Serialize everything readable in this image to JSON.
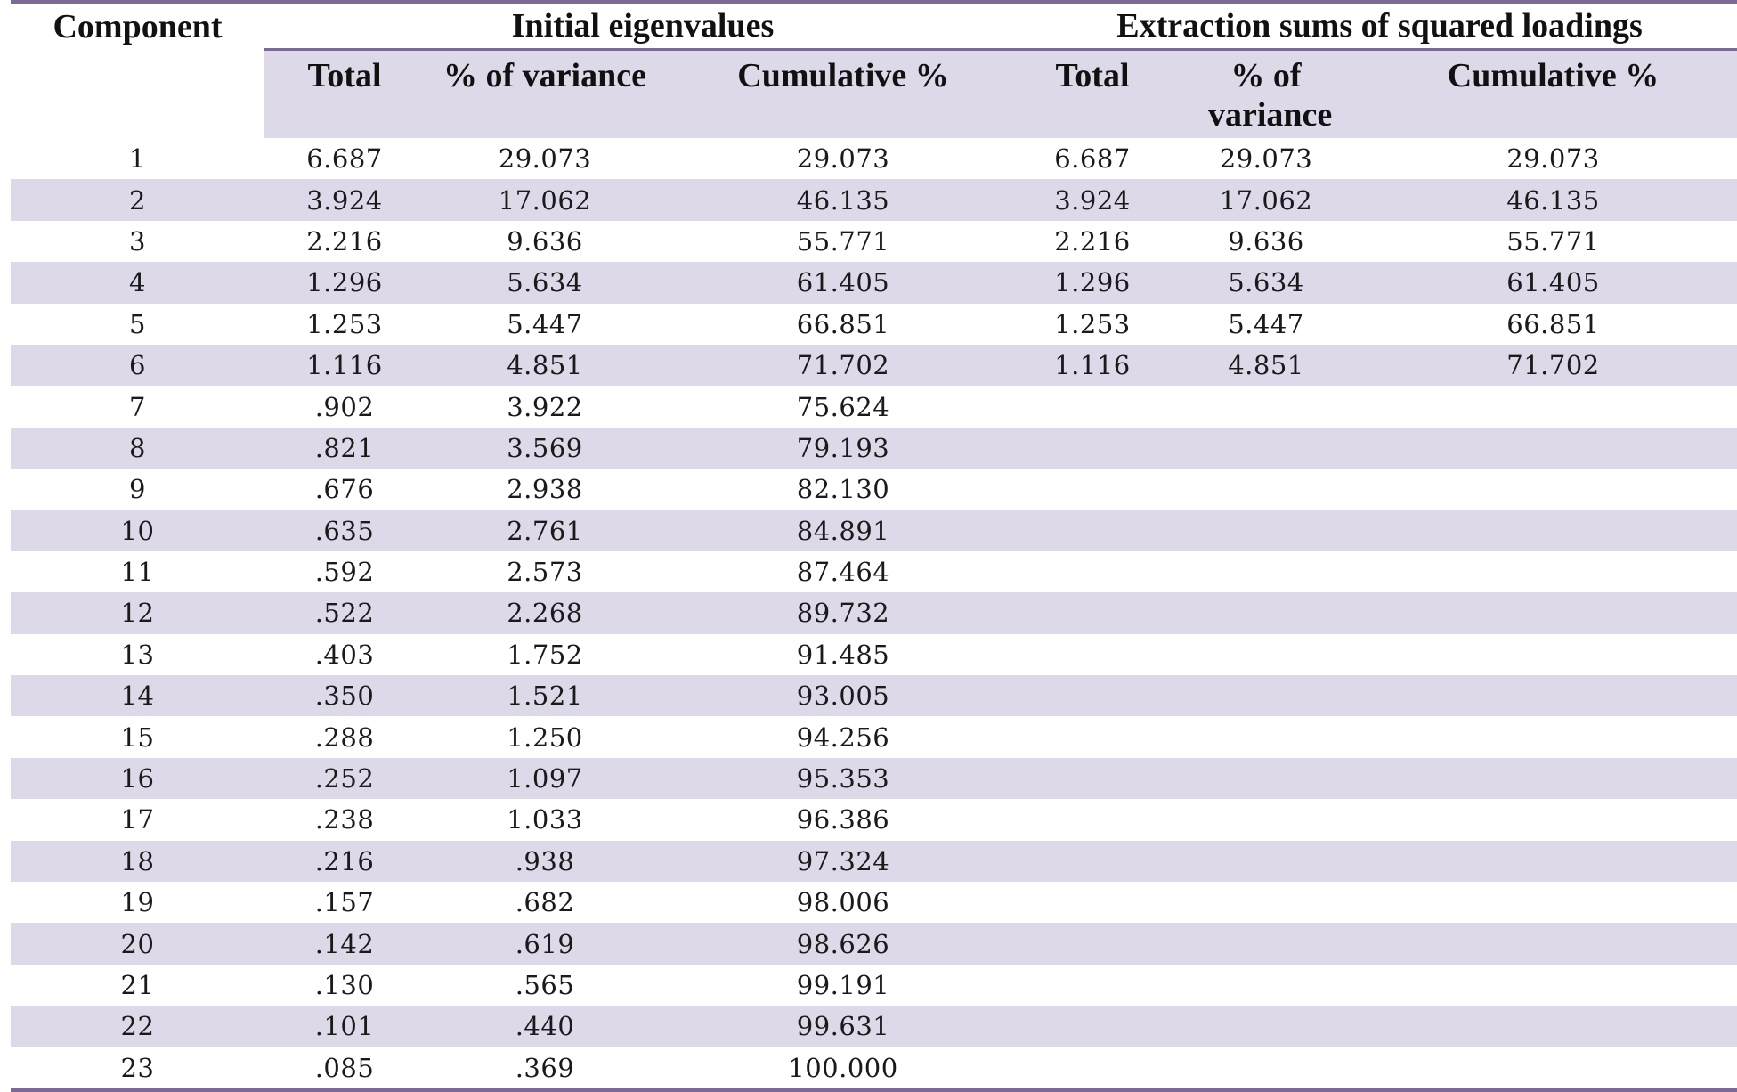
{
  "header": {
    "component": "Component",
    "group_initial": "Initial eigenvalues",
    "group_extraction": "Extraction sums of squared loadings",
    "initial_total": "Total",
    "initial_pct": "% of variance",
    "initial_cum": "Cumulative %",
    "extraction_total": "Total",
    "extraction_pct": "% of variance",
    "extraction_cum": "Cumulative %"
  },
  "rows": [
    {
      "component": "1",
      "total": "6.687",
      "pct": "29.073",
      "cum": "29.073",
      "ext_total": "6.687",
      "ext_pct": "29.073",
      "ext_cum": "29.073"
    },
    {
      "component": "2",
      "total": "3.924",
      "pct": "17.062",
      "cum": "46.135",
      "ext_total": "3.924",
      "ext_pct": "17.062",
      "ext_cum": "46.135"
    },
    {
      "component": "3",
      "total": "2.216",
      "pct": "9.636",
      "cum": "55.771",
      "ext_total": "2.216",
      "ext_pct": "9.636",
      "ext_cum": "55.771"
    },
    {
      "component": "4",
      "total": "1.296",
      "pct": "5.634",
      "cum": "61.405",
      "ext_total": "1.296",
      "ext_pct": "5.634",
      "ext_cum": "61.405"
    },
    {
      "component": "5",
      "total": "1.253",
      "pct": "5.447",
      "cum": "66.851",
      "ext_total": "1.253",
      "ext_pct": "5.447",
      "ext_cum": "66.851"
    },
    {
      "component": "6",
      "total": "1.116",
      "pct": "4.851",
      "cum": "71.702",
      "ext_total": "1.116",
      "ext_pct": "4.851",
      "ext_cum": "71.702"
    },
    {
      "component": "7",
      "total": ".902",
      "pct": "3.922",
      "cum": "75.624",
      "ext_total": "",
      "ext_pct": "",
      "ext_cum": ""
    },
    {
      "component": "8",
      "total": ".821",
      "pct": "3.569",
      "cum": "79.193",
      "ext_total": "",
      "ext_pct": "",
      "ext_cum": ""
    },
    {
      "component": "9",
      "total": ".676",
      "pct": "2.938",
      "cum": "82.130",
      "ext_total": "",
      "ext_pct": "",
      "ext_cum": ""
    },
    {
      "component": "10",
      "total": ".635",
      "pct": "2.761",
      "cum": "84.891",
      "ext_total": "",
      "ext_pct": "",
      "ext_cum": ""
    },
    {
      "component": "11",
      "total": ".592",
      "pct": "2.573",
      "cum": "87.464",
      "ext_total": "",
      "ext_pct": "",
      "ext_cum": ""
    },
    {
      "component": "12",
      "total": ".522",
      "pct": "2.268",
      "cum": "89.732",
      "ext_total": "",
      "ext_pct": "",
      "ext_cum": ""
    },
    {
      "component": "13",
      "total": ".403",
      "pct": "1.752",
      "cum": "91.485",
      "ext_total": "",
      "ext_pct": "",
      "ext_cum": ""
    },
    {
      "component": "14",
      "total": ".350",
      "pct": "1.521",
      "cum": "93.005",
      "ext_total": "",
      "ext_pct": "",
      "ext_cum": ""
    },
    {
      "component": "15",
      "total": ".288",
      "pct": "1.250",
      "cum": "94.256",
      "ext_total": "",
      "ext_pct": "",
      "ext_cum": ""
    },
    {
      "component": "16",
      "total": ".252",
      "pct": "1.097",
      "cum": "95.353",
      "ext_total": "",
      "ext_pct": "",
      "ext_cum": ""
    },
    {
      "component": "17",
      "total": ".238",
      "pct": "1.033",
      "cum": "96.386",
      "ext_total": "",
      "ext_pct": "",
      "ext_cum": ""
    },
    {
      "component": "18",
      "total": ".216",
      "pct": ".938",
      "cum": "97.324",
      "ext_total": "",
      "ext_pct": "",
      "ext_cum": ""
    },
    {
      "component": "19",
      "total": ".157",
      "pct": ".682",
      "cum": "98.006",
      "ext_total": "",
      "ext_pct": "",
      "ext_cum": ""
    },
    {
      "component": "20",
      "total": ".142",
      "pct": ".619",
      "cum": "98.626",
      "ext_total": "",
      "ext_pct": "",
      "ext_cum": ""
    },
    {
      "component": "21",
      "total": ".130",
      "pct": ".565",
      "cum": "99.191",
      "ext_total": "",
      "ext_pct": "",
      "ext_cum": ""
    },
    {
      "component": "22",
      "total": ".101",
      "pct": ".440",
      "cum": "99.631",
      "ext_total": "",
      "ext_pct": "",
      "ext_cum": ""
    },
    {
      "component": "23",
      "total": ".085",
      "pct": ".369",
      "cum": "100.000",
      "ext_total": "",
      "ext_pct": "",
      "ext_cum": ""
    }
  ]
}
